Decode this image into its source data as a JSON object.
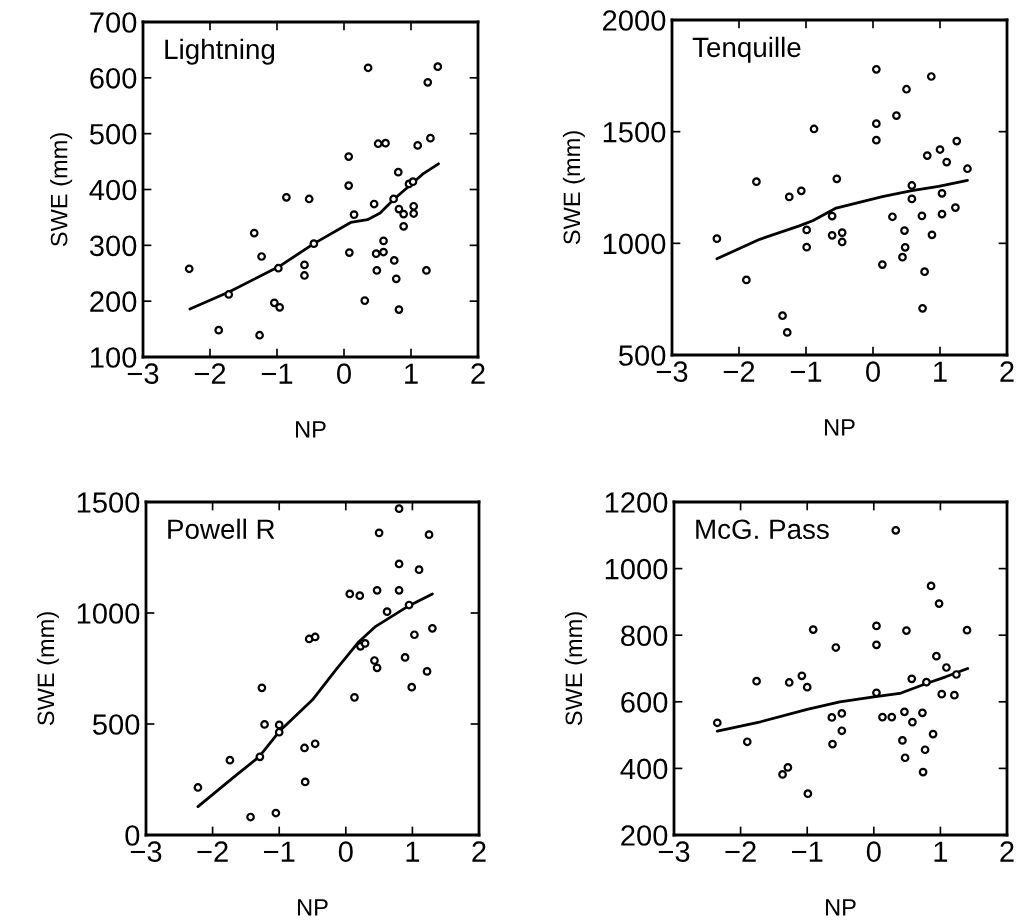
{
  "chart_data": [
    {
      "type": "scatter",
      "title": "Lightning",
      "xlabel": "NP",
      "ylabel": "SWE (mm)",
      "xlim": [
        -3,
        2
      ],
      "xticks": [
        -3,
        -2,
        -1,
        0,
        1,
        2
      ],
      "ylim": [
        100,
        700
      ],
      "yticks": [
        100,
        200,
        300,
        400,
        500,
        600,
        700
      ],
      "grid": false,
      "legend": false,
      "series": [
        {
          "marker": "circle",
          "color": "#000000",
          "x": [
            -2.31,
            -1.87,
            -1.72,
            -1.34,
            -1.23,
            -1.04,
            -0.96,
            -0.98,
            -0.86,
            -1.26,
            -0.59,
            -0.59,
            -0.52,
            -0.45,
            0.07,
            0.07,
            0.08,
            0.15,
            0.31,
            0.36,
            0.45,
            0.49,
            0.48,
            0.51,
            0.62,
            0.59,
            0.59,
            0.74,
            0.75,
            0.78,
            0.81,
            0.82,
            0.82,
            0.89,
            0.89,
            0.97,
            1.03,
            1.04,
            1.04,
            1.1,
            1.23,
            1.25,
            1.29,
            1.4
          ],
          "values": [
            258,
            148,
            212,
            322,
            280,
            197,
            189,
            259,
            386,
            139,
            265,
            246,
            383,
            303,
            459,
            407,
            287,
            355,
            201,
            618,
            374,
            255,
            285,
            482,
            483,
            308,
            288,
            383,
            273,
            240,
            431,
            185,
            365,
            356,
            334,
            410,
            414,
            370,
            357,
            479,
            255,
            592,
            492,
            620
          ]
        },
        {
          "type": "line",
          "color": "#000000",
          "x": [
            -2.3,
            -1.71,
            -0.97,
            -0.45,
            0.1,
            0.35,
            0.54,
            0.74,
            0.99,
            1.19,
            1.41
          ],
          "values": [
            186,
            217,
            262,
            303,
            341,
            346,
            358,
            382,
            408,
            429,
            446
          ]
        }
      ]
    },
    {
      "type": "scatter",
      "title": "Tenquille",
      "xlabel": "NP",
      "ylabel": "SWE (mm)",
      "xlim": [
        -3,
        2
      ],
      "xticks": [
        -3,
        -2,
        -1,
        0,
        1,
        2
      ],
      "ylim": [
        500,
        2000
      ],
      "yticks": [
        500,
        1000,
        1500,
        2000
      ],
      "grid": false,
      "legend": false,
      "series": [
        {
          "marker": "circle",
          "color": "#000000",
          "x": [
            -2.33,
            -1.89,
            -1.74,
            -1.35,
            -1.28,
            -1.25,
            -1.07,
            -0.99,
            -0.99,
            -0.88,
            -0.61,
            -0.61,
            -0.54,
            -0.46,
            -0.46,
            0.05,
            0.05,
            0.05,
            0.14,
            0.29,
            0.35,
            0.47,
            0.44,
            0.48,
            0.5,
            0.58,
            0.58,
            0.73,
            0.77,
            0.74,
            0.81,
            0.87,
            0.88,
            1.0,
            1.03,
            1.03,
            1.1,
            1.23,
            1.25,
            1.41
          ],
          "values": [
            1021,
            836,
            1276,
            676,
            601,
            1208,
            1235,
            1060,
            983,
            1512,
            1122,
            1036,
            1289,
            1048,
            1006,
            1779,
            1536,
            1462,
            905,
            1119,
            1572,
            1057,
            938,
            982,
            1690,
            1259,
            1199,
            1123,
            873,
            709,
            1393,
            1747,
            1038,
            1420,
            1224,
            1131,
            1364,
            1160,
            1458,
            1334
          ]
        },
        {
          "type": "line",
          "color": "#000000",
          "x": [
            -2.33,
            -1.69,
            -1.1,
            -0.9,
            -0.55,
            0.14,
            0.58,
            0.98,
            1.41
          ],
          "values": [
            931,
            1018,
            1078,
            1101,
            1158,
            1209,
            1236,
            1255,
            1282
          ]
        }
      ]
    },
    {
      "type": "scatter",
      "title": "Powell R",
      "xlabel": "NP",
      "ylabel": "SWE (mm)",
      "xlim": [
        -3,
        2
      ],
      "xticks": [
        -3,
        -2,
        -1,
        0,
        1,
        2
      ],
      "ylim": [
        0,
        1500
      ],
      "yticks": [
        0,
        500,
        1000,
        1500
      ],
      "grid": false,
      "legend": false,
      "series": [
        {
          "marker": "circle",
          "color": "#000000",
          "x": [
            -2.22,
            -1.74,
            -1.43,
            -1.29,
            -1.26,
            -1.22,
            -1.05,
            -1.0,
            -1.0,
            -0.62,
            -0.61,
            -0.55,
            -0.46,
            -0.46,
            0.06,
            0.13,
            0.21,
            0.22,
            0.29,
            0.43,
            0.47,
            0.47,
            0.5,
            0.62,
            0.8,
            0.8,
            0.8,
            0.89,
            0.95,
            0.99,
            1.03,
            1.1,
            1.22,
            1.25,
            1.3
          ],
          "values": [
            214,
            337,
            81,
            352,
            663,
            498,
            99,
            496,
            463,
            392,
            239,
            883,
            892,
            411,
            1086,
            620,
            1078,
            850,
            863,
            786,
            753,
            1102,
            1361,
            1006,
            1221,
            1102,
            1470,
            800,
            1036,
            666,
            902,
            1195,
            737,
            1353,
            931
          ]
        },
        {
          "type": "line",
          "color": "#000000",
          "x": [
            -2.22,
            -1.7,
            -1.3,
            -1.0,
            -0.5,
            -0.15,
            0.2,
            0.45,
            0.95,
            1.3
          ],
          "values": [
            128,
            256,
            353,
            466,
            609,
            744,
            872,
            940,
            1033,
            1086
          ]
        }
      ]
    },
    {
      "type": "scatter",
      "title": "McG. Pass",
      "xlabel": "NP",
      "ylabel": "SWE (mm)",
      "xlim": [
        -3,
        2
      ],
      "xticks": [
        -3,
        -2,
        -1,
        0,
        1,
        2
      ],
      "ylim": [
        200,
        1200
      ],
      "yticks": [
        200,
        400,
        600,
        800,
        1000,
        1200
      ],
      "grid": false,
      "legend": false,
      "series": [
        {
          "marker": "circle",
          "color": "#000000",
          "x": [
            -2.35,
            -1.9,
            -1.76,
            -1.37,
            -1.29,
            -1.27,
            -1.08,
            -1.0,
            -0.99,
            -0.91,
            -0.63,
            -0.62,
            -0.57,
            -0.48,
            -0.48,
            0.04,
            0.04,
            0.04,
            0.13,
            0.27,
            0.33,
            0.43,
            0.46,
            0.47,
            0.49,
            0.57,
            0.58,
            0.73,
            0.74,
            0.77,
            0.79,
            0.86,
            0.89,
            0.94,
            0.98,
            1.02,
            1.09,
            1.21,
            1.24,
            1.4
          ],
          "values": [
            537,
            480,
            662,
            382,
            403,
            658,
            678,
            644,
            324,
            817,
            553,
            473,
            763,
            565,
            513,
            828,
            771,
            627,
            554,
            554,
            1115,
            484,
            570,
            432,
            814,
            669,
            539,
            567,
            389,
            456,
            659,
            948,
            503,
            737,
            895,
            623,
            703,
            620,
            682,
            815
          ]
        },
        {
          "type": "line",
          "color": "#000000",
          "x": [
            -2.35,
            -1.7,
            -1.0,
            -0.51,
            0.0,
            0.39,
            0.79,
            1.08,
            1.41
          ],
          "values": [
            512,
            540,
            577,
            600,
            615,
            625,
            655,
            675,
            700
          ]
        }
      ]
    }
  ]
}
